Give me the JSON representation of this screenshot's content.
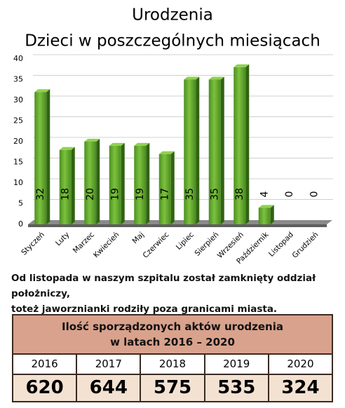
{
  "chart_data": {
    "type": "bar",
    "title": "Urodzenia",
    "subtitle": "Dzieci w poszczególnych miesiącach",
    "categories": [
      "Styczeń",
      "Luty",
      "Marzec",
      "Kwiecień",
      "Maj",
      "Czerwiec",
      "Lipiec",
      "Sierpień",
      "Wrzesień",
      "Październik",
      "Listopad",
      "Grudzień"
    ],
    "values": [
      32,
      18,
      20,
      19,
      19,
      17,
      35,
      35,
      38,
      4,
      0,
      0
    ],
    "color": "#5a9e2a",
    "ylim": [
      0,
      40
    ],
    "yticks": [
      0,
      5,
      10,
      15,
      20,
      25,
      30,
      35,
      40
    ],
    "grid": true
  },
  "note": [
    "Od listopada w naszym szpitalu został zamknięty oddział położniczy,",
    "toteż jaworznianki rodziły poza granicami miasta."
  ],
  "table": {
    "title": [
      "Ilość sporządzonych aktów urodzenia",
      "w latach 2016 – 2020"
    ],
    "header": [
      2016,
      2017,
      2018,
      2019,
      2020
    ],
    "rows": [
      [
        620,
        644,
        575,
        535,
        324
      ]
    ]
  }
}
